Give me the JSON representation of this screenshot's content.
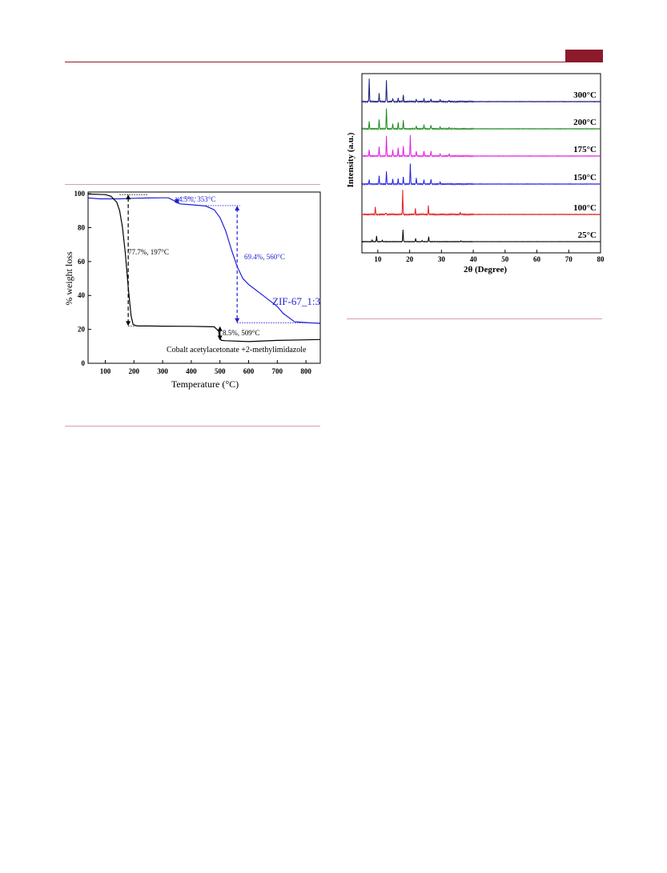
{
  "header": {
    "accent_color": "#8b1a2b"
  },
  "chart_data": [
    {
      "type": "line",
      "xlabel": "Temperature (°C)",
      "ylabel": "% weight loss",
      "xlim": [
        40,
        850
      ],
      "ylim": [
        0,
        101
      ],
      "xticks": [
        100,
        200,
        300,
        400,
        500,
        600,
        700,
        800
      ],
      "yticks": [
        0,
        20,
        40,
        60,
        80,
        100
      ],
      "grid": false,
      "series": [
        {
          "name": "ZIF-67_1:3",
          "color": "#1f1fd6",
          "x": [
            40,
            80,
            150,
            200,
            250,
            300,
            320,
            345,
            360,
            400,
            450,
            480,
            500,
            520,
            540,
            560,
            580,
            600,
            650,
            700,
            720,
            760,
            800,
            850
          ],
          "y": [
            97.5,
            97.0,
            97.0,
            97.3,
            97.5,
            97.6,
            97.6,
            95.5,
            94.0,
            93.5,
            92.8,
            90.5,
            86.0,
            78.0,
            67.0,
            57.0,
            50.0,
            46.5,
            40.0,
            33.5,
            29.5,
            24.5,
            24.0,
            23.5
          ]
        },
        {
          "name": "Cobalt acetylacetonate +2-methylimidazole",
          "color": "#000000",
          "x": [
            40,
            100,
            120,
            140,
            150,
            160,
            170,
            180,
            190,
            197,
            205,
            215,
            250,
            300,
            400,
            480,
            495,
            500,
            505,
            520,
            600,
            700,
            850
          ],
          "y": [
            99.8,
            99.5,
            98.5,
            95.0,
            90.0,
            80.0,
            65.0,
            45.0,
            28.0,
            23.0,
            22.3,
            22.0,
            22.0,
            21.9,
            21.8,
            21.5,
            19.0,
            15.0,
            13.5,
            13.3,
            12.8,
            13.5,
            14.0
          ]
        }
      ],
      "annotations": [
        {
          "text": "4.5%, 353°C",
          "color": "#1f1fd6"
        },
        {
          "text": "69.4%, 560°C",
          "color": "#1f1fd6"
        },
        {
          "text": "77.7%, 197°C",
          "color": "#000000"
        },
        {
          "text": "8.5%, 509°C",
          "color": "#000000"
        }
      ],
      "labels": {
        "zif": "ZIF-67_1:3",
        "cobalt": "Cobalt acetylacetonate +2-methylimidazole"
      }
    },
    {
      "type": "line",
      "xlabel": "2θ (Degree)",
      "ylabel": "Intensity (a.u.)",
      "xlim": [
        5,
        80
      ],
      "xticks": [
        10,
        20,
        30,
        40,
        50,
        60,
        70,
        80
      ],
      "yticks_shown": false,
      "series": [
        {
          "name": "300°C",
          "color": "#1a1a7a",
          "peaks": [
            [
              7.3,
              1.0
            ],
            [
              10.4,
              0.35
            ],
            [
              12.7,
              0.95
            ],
            [
              14.7,
              0.15
            ],
            [
              16.4,
              0.15
            ],
            [
              18.0,
              0.3
            ],
            [
              22.1,
              0.1
            ],
            [
              24.5,
              0.12
            ],
            [
              26.7,
              0.12
            ],
            [
              29.6,
              0.08
            ],
            [
              32.4,
              0.06
            ]
          ]
        },
        {
          "name": "200°C",
          "color": "#1a8a1a",
          "peaks": [
            [
              7.3,
              0.35
            ],
            [
              10.4,
              0.45
            ],
            [
              12.7,
              1.0
            ],
            [
              14.7,
              0.25
            ],
            [
              16.4,
              0.3
            ],
            [
              18.0,
              0.4
            ],
            [
              22.1,
              0.15
            ],
            [
              24.5,
              0.18
            ],
            [
              26.7,
              0.2
            ],
            [
              29.6,
              0.1
            ],
            [
              32.4,
              0.08
            ]
          ]
        },
        {
          "name": "175°C",
          "color": "#e020e0",
          "peaks": [
            [
              7.3,
              0.3
            ],
            [
              10.4,
              0.45
            ],
            [
              12.7,
              0.95
            ],
            [
              14.7,
              0.3
            ],
            [
              16.4,
              0.4
            ],
            [
              18.0,
              0.5
            ],
            [
              20.2,
              1.0
            ],
            [
              22.1,
              0.25
            ],
            [
              24.5,
              0.25
            ],
            [
              26.7,
              0.25
            ],
            [
              29.6,
              0.12
            ],
            [
              32.4,
              0.1
            ]
          ]
        },
        {
          "name": "150°C",
          "color": "#2020e0",
          "peaks": [
            [
              7.3,
              0.2
            ],
            [
              10.4,
              0.4
            ],
            [
              12.7,
              0.6
            ],
            [
              14.7,
              0.25
            ],
            [
              16.4,
              0.25
            ],
            [
              18.0,
              0.35
            ],
            [
              20.2,
              1.0
            ],
            [
              22.1,
              0.3
            ],
            [
              24.5,
              0.2
            ],
            [
              26.7,
              0.25
            ],
            [
              29.6,
              0.1
            ]
          ]
        },
        {
          "name": "100°C",
          "color": "#e02020",
          "peaks": [
            [
              9.2,
              0.3
            ],
            [
              12.5,
              0.08
            ],
            [
              17.8,
              1.0
            ],
            [
              21.8,
              0.25
            ],
            [
              25.9,
              0.35
            ],
            [
              35.9,
              0.08
            ]
          ]
        },
        {
          "name": "25°C",
          "color": "#000000",
          "peaks": [
            [
              8.2,
              0.15
            ],
            [
              9.6,
              0.45
            ],
            [
              11.4,
              0.12
            ],
            [
              17.9,
              1.0
            ],
            [
              21.9,
              0.28
            ],
            [
              23.9,
              0.08
            ],
            [
              26.0,
              0.42
            ],
            [
              36.1,
              0.06
            ]
          ]
        }
      ]
    }
  ]
}
